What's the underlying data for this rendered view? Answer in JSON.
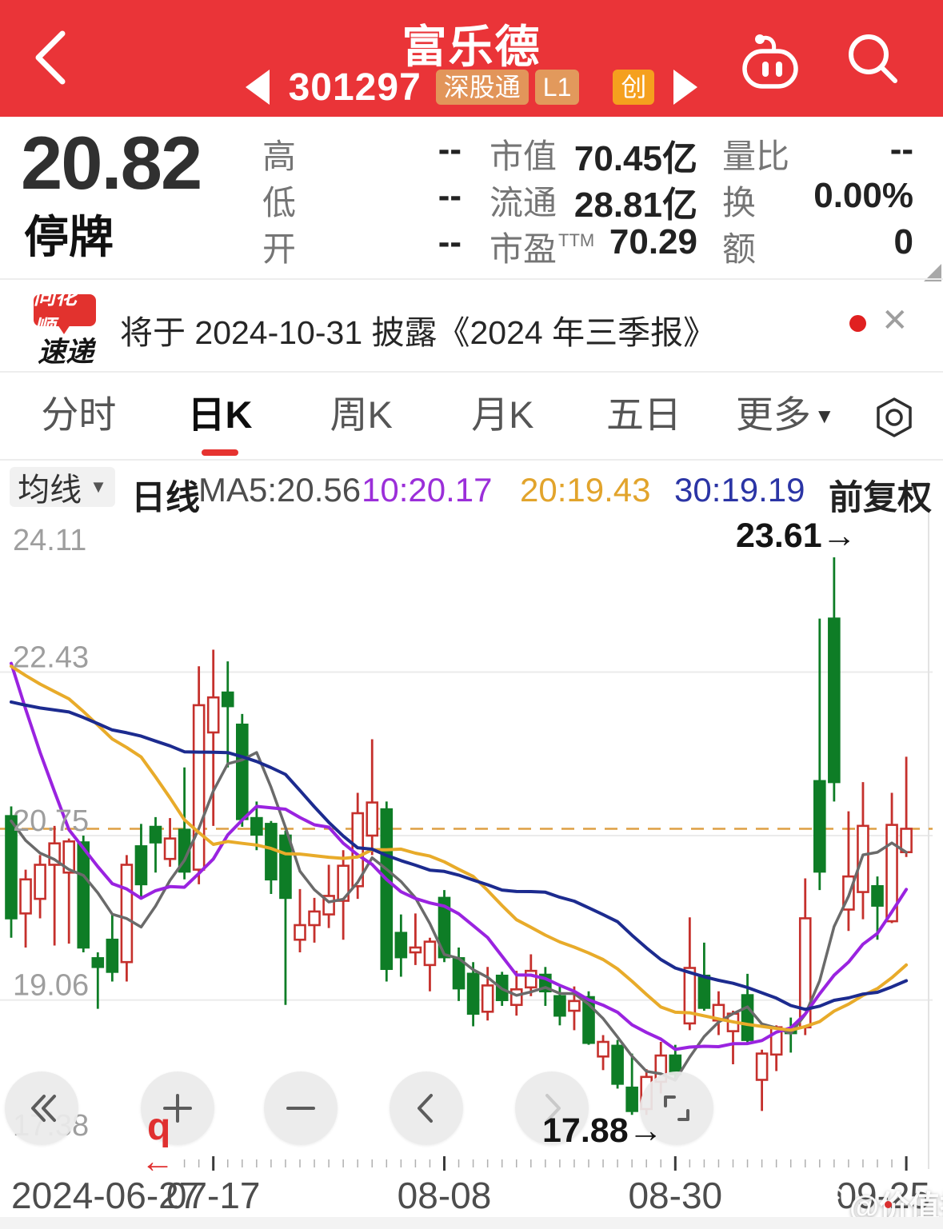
{
  "header": {
    "title": "富乐德",
    "code": "301297",
    "badges": [
      {
        "label": "深股通",
        "color": "#e2955a"
      },
      {
        "label": "L1",
        "color": "#e2995c"
      },
      {
        "label": "创",
        "color": "#f5a01e"
      }
    ],
    "accent_color": "#ea3438"
  },
  "quote": {
    "price": "20.82",
    "status": "停牌",
    "columns": [
      [
        {
          "label": "高",
          "value": "--"
        },
        {
          "label": "低",
          "value": "--"
        },
        {
          "label": "开",
          "value": "--"
        }
      ],
      [
        {
          "label": "市值",
          "value": "70.45亿"
        },
        {
          "label": "流通",
          "value": "28.81亿"
        },
        {
          "label": "市盈",
          "sup": "TTM",
          "value": "70.29"
        }
      ],
      [
        {
          "label": "量比",
          "value": "--"
        },
        {
          "label": "换",
          "value": "0.00%"
        },
        {
          "label": "额",
          "value": "0"
        }
      ]
    ]
  },
  "news": {
    "logo_line1": "同花顺",
    "logo_line2": "速递",
    "text": "将于 2024-10-31 披露《2024 年三季报》",
    "close_glyph": "✕"
  },
  "tabs": {
    "items": [
      {
        "label": "分时"
      },
      {
        "label": "日K"
      },
      {
        "label": "周K"
      },
      {
        "label": "月K"
      },
      {
        "label": "五日"
      },
      {
        "label": "更多",
        "arrow": true
      }
    ],
    "active": "日K"
  },
  "ma_bar": {
    "dropdown": "均线",
    "dropdown_arrow": "▼",
    "period": "日线",
    "items": [
      {
        "label": "MA5:20.56",
        "color": "#4d4d4d"
      },
      {
        "label": "10:20.17",
        "color": "#9b2fd9"
      },
      {
        "label": "20:19.43",
        "color": "#e2a42c"
      },
      {
        "label": "30:19.19",
        "color": "#2b35a5"
      }
    ],
    "right": "前复权"
  },
  "chart_data": {
    "type": "candlestick",
    "title": "富乐德 日K 前复权",
    "y_axis_labels": [
      "24.11",
      "22.43",
      "20.75",
      "19.06",
      "17.38"
    ],
    "y_axis_values": [
      24.11,
      22.43,
      20.75,
      19.06,
      17.38
    ],
    "grid_values": [
      22.43,
      20.75,
      19.06
    ],
    "current_price_line": 20.82,
    "high_annotation": {
      "text": "23.61→",
      "value": 23.61
    },
    "low_annotation": {
      "text": "17.88→",
      "value": 17.88
    },
    "x_labels": [
      {
        "text": "2024-06-27",
        "index": 0,
        "anchor": "left"
      },
      {
        "text": "07-17",
        "index": 14,
        "anchor": "center"
      },
      {
        "text": "08-08",
        "index": 30,
        "anchor": "center"
      },
      {
        "text": "08-30",
        "index": 46,
        "anchor": "center"
      },
      {
        "text": "09-25",
        "index": 62,
        "anchor": "right"
      }
    ],
    "up_color": "#c5302c",
    "down_color": "#0e7d26",
    "dashed_line_color": "#dd9f44",
    "ma_lines": [
      {
        "period": 5,
        "color": "#6a6a6a"
      },
      {
        "period": 10,
        "color": "#9a23e0"
      },
      {
        "period": 20,
        "color": "#e8ab2a"
      },
      {
        "period": 30,
        "color": "#1c2b8f"
      }
    ],
    "ma_history_closes": [
      21.3,
      21.3,
      21.3,
      21.3,
      21.3,
      21.3,
      21.3,
      21.3,
      21.3,
      21.3,
      22.2,
      22.2,
      22.2,
      22.2,
      22.2,
      22.2,
      22.2,
      22.2,
      22.2,
      22.2,
      24.8,
      25.0,
      24.9,
      24.7,
      24.6,
      21.5,
      21.3,
      21.1,
      21.0,
      21.2
    ],
    "candles": [
      [
        20.95,
        21.05,
        19.7,
        19.9
      ],
      [
        19.95,
        20.4,
        19.6,
        20.3
      ],
      [
        20.1,
        20.55,
        19.9,
        20.45
      ],
      [
        20.45,
        20.85,
        19.62,
        20.67
      ],
      [
        20.37,
        20.72,
        19.64,
        20.69
      ],
      [
        20.68,
        20.75,
        19.55,
        19.6
      ],
      [
        19.49,
        19.55,
        18.97,
        19.4
      ],
      [
        19.68,
        19.95,
        19.25,
        19.35
      ],
      [
        19.45,
        20.55,
        19.25,
        20.45
      ],
      [
        20.64,
        20.87,
        20.1,
        20.25
      ],
      [
        20.84,
        20.94,
        20.37,
        20.68
      ],
      [
        20.51,
        20.93,
        20.43,
        20.72
      ],
      [
        20.81,
        21.45,
        20.3,
        20.38
      ],
      [
        20.4,
        22.49,
        20.25,
        22.09
      ],
      [
        21.81,
        22.66,
        20.85,
        22.17
      ],
      [
        22.22,
        22.54,
        21.45,
        22.08
      ],
      [
        21.89,
        22.0,
        20.84,
        20.92
      ],
      [
        20.93,
        21.1,
        20.6,
        20.76
      ],
      [
        20.87,
        20.9,
        20.15,
        20.3
      ],
      [
        20.75,
        20.8,
        19.01,
        20.11
      ],
      [
        19.68,
        20.2,
        19.55,
        19.83
      ],
      [
        19.83,
        20.11,
        19.65,
        19.97
      ],
      [
        19.94,
        20.45,
        19.8,
        20.13
      ],
      [
        20.08,
        20.6,
        19.68,
        20.44
      ],
      [
        20.23,
        21.19,
        20.1,
        20.98
      ],
      [
        20.75,
        21.74,
        20.55,
        21.09
      ],
      [
        21.02,
        21.1,
        19.25,
        19.38
      ],
      [
        19.75,
        19.94,
        19.3,
        19.5
      ],
      [
        19.55,
        19.95,
        19.42,
        19.6
      ],
      [
        19.42,
        19.7,
        19.15,
        19.66
      ],
      [
        20.11,
        20.19,
        19.45,
        19.5
      ],
      [
        19.49,
        19.6,
        19.05,
        19.18
      ],
      [
        19.33,
        19.45,
        18.79,
        18.92
      ],
      [
        18.94,
        19.4,
        18.85,
        19.21
      ],
      [
        19.31,
        19.35,
        19.0,
        19.06
      ],
      [
        19.01,
        19.36,
        18.9,
        19.17
      ],
      [
        19.19,
        19.53,
        19.1,
        19.36
      ],
      [
        19.32,
        19.4,
        19.0,
        19.15
      ],
      [
        19.1,
        19.22,
        18.8,
        18.9
      ],
      [
        18.95,
        19.2,
        18.75,
        19.05
      ],
      [
        19.09,
        19.15,
        18.6,
        18.62
      ],
      [
        18.48,
        18.7,
        18.34,
        18.63
      ],
      [
        18.59,
        18.65,
        18.15,
        18.2
      ],
      [
        18.16,
        18.51,
        17.88,
        17.92
      ],
      [
        17.94,
        18.35,
        17.88,
        18.27
      ],
      [
        18.22,
        18.63,
        18.1,
        18.49
      ],
      [
        18.49,
        18.6,
        18.25,
        18.3
      ],
      [
        18.82,
        19.91,
        18.75,
        19.39
      ],
      [
        19.31,
        19.65,
        18.95,
        18.98
      ],
      [
        18.85,
        19.15,
        18.7,
        19.01
      ],
      [
        18.74,
        18.95,
        18.4,
        18.92
      ],
      [
        19.11,
        19.33,
        18.6,
        18.65
      ],
      [
        18.24,
        18.55,
        17.92,
        18.51
      ],
      [
        18.5,
        18.8,
        18.33,
        18.78
      ],
      [
        18.75,
        18.88,
        18.52,
        18.72
      ],
      [
        18.78,
        20.31,
        18.7,
        19.9
      ],
      [
        21.31,
        22.98,
        20.19,
        20.38
      ],
      [
        22.98,
        23.61,
        21.1,
        21.3
      ],
      [
        19.99,
        21.0,
        19.77,
        20.33
      ],
      [
        20.17,
        21.3,
        19.89,
        20.85
      ],
      [
        20.23,
        20.33,
        19.68,
        20.03
      ],
      [
        19.87,
        21.19,
        19.85,
        20.86
      ],
      [
        20.58,
        21.56,
        20.53,
        20.82
      ]
    ]
  },
  "controls": {
    "buttons": [
      {
        "icon": "double-chevron-left"
      },
      {
        "icon": "plus"
      },
      {
        "icon": "minus"
      },
      {
        "icon": "chevron-left"
      },
      {
        "icon": "chevron-right",
        "disabled": true
      },
      {
        "icon": "rotate-corner"
      }
    ],
    "hint_q": "q",
    "hint_arrow": "←"
  },
  "watermark": {
    "text": "@价值投资日志"
  }
}
